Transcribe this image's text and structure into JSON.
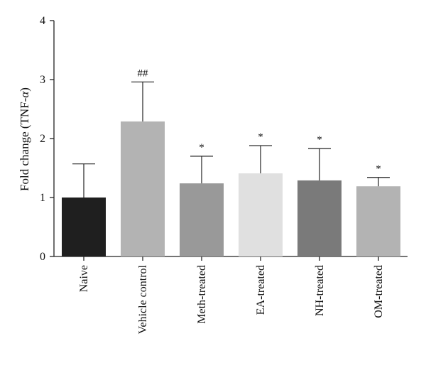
{
  "chart_data": {
    "type": "bar",
    "title": "",
    "xlabel": "",
    "ylabel": "Fold change (TNF-α)",
    "ylabel_parts": {
      "prefix": "Fold change (TNF-",
      "symbol": "α",
      "suffix": ")"
    },
    "ylim": [
      0,
      4
    ],
    "yticks": [
      "0",
      "1",
      "2",
      "3",
      "4"
    ],
    "categories": [
      "Naive",
      "Vehicle control",
      "Meth-treated",
      "EA-treated",
      "NH-treated",
      "OM-treated"
    ],
    "values": [
      1.0,
      2.29,
      1.24,
      1.41,
      1.29,
      1.19
    ],
    "error_upper": [
      0.57,
      0.67,
      0.46,
      0.47,
      0.54,
      0.15
    ],
    "annotations": [
      "",
      "##",
      "*",
      "*",
      "*",
      "*"
    ],
    "bar_colors": [
      "#1f1f1f",
      "#b3b3b3",
      "#999999",
      "#e0e0e0",
      "#7a7a7a",
      "#b3b3b3"
    ],
    "grid": false,
    "legend": "none"
  }
}
